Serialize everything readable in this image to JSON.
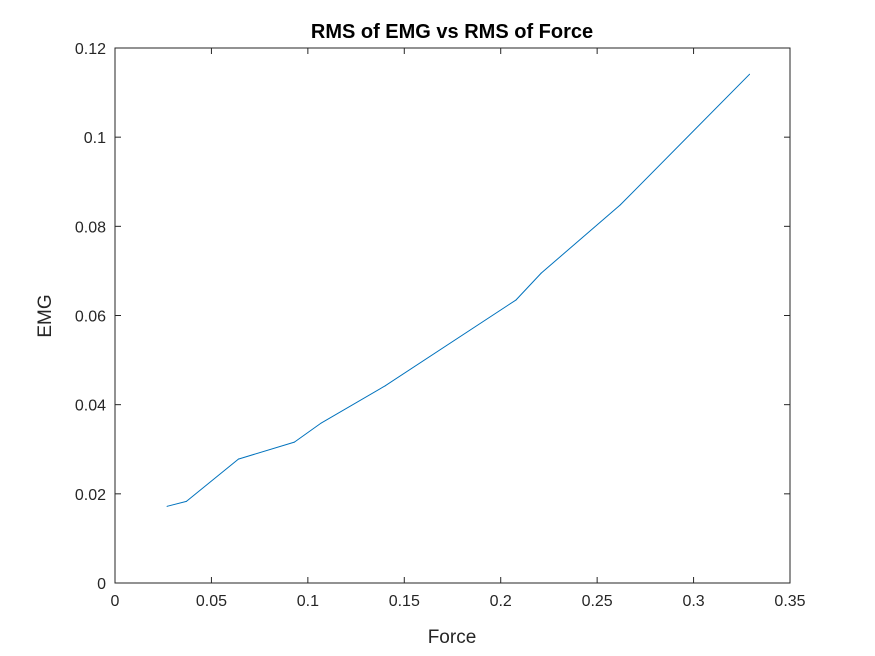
{
  "chart_data": {
    "type": "line",
    "title": "RMS of EMG vs RMS of Force",
    "xlabel": "Force",
    "ylabel": "EMG",
    "xlim": [
      0,
      0.35
    ],
    "ylim": [
      0,
      0.12
    ],
    "xticks": [
      0,
      0.05,
      0.1,
      0.15,
      0.2,
      0.25,
      0.3,
      0.35
    ],
    "xtick_labels": [
      "0",
      "0.05",
      "0.1",
      "0.15",
      "0.2",
      "0.25",
      "0.3",
      "0.35"
    ],
    "yticks": [
      0,
      0.02,
      0.04,
      0.06,
      0.08,
      0.1,
      0.12
    ],
    "ytick_labels": [
      "0",
      "0.02",
      "0.04",
      "0.06",
      "0.08",
      "0.1",
      "0.12"
    ],
    "grid": false,
    "series": [
      {
        "color": "#0072BD",
        "x": [
          0.027,
          0.037,
          0.064,
          0.093,
          0.107,
          0.14,
          0.208,
          0.221,
          0.262,
          0.329
        ],
        "y": [
          0.0172,
          0.0183,
          0.0278,
          0.0316,
          0.0359,
          0.0442,
          0.0635,
          0.0695,
          0.0848,
          0.1141
        ]
      }
    ]
  }
}
